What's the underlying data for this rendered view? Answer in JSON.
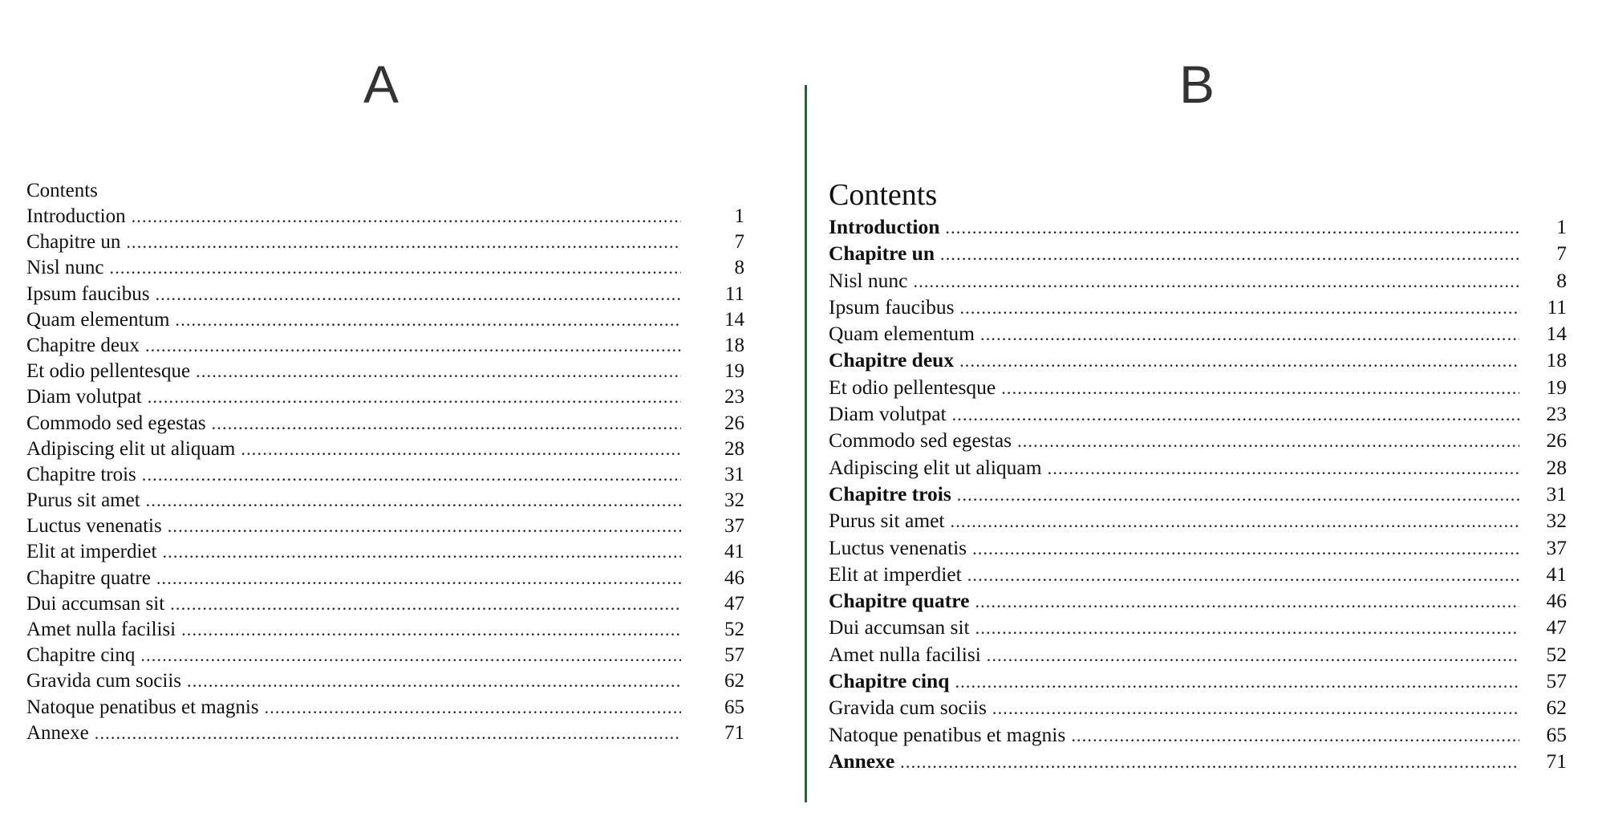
{
  "panel_a": {
    "label": "A",
    "heading": "Contents",
    "entries": [
      {
        "title": "Introduction",
        "page": "1"
      },
      {
        "title": "Chapitre un",
        "page": "7"
      },
      {
        "title": "Nisl nunc",
        "page": "8"
      },
      {
        "title": "Ipsum faucibus",
        "page": "11"
      },
      {
        "title": "Quam elementum",
        "page": "14"
      },
      {
        "title": "Chapitre deux",
        "page": "18"
      },
      {
        "title": "Et odio pellentesque",
        "page": "19"
      },
      {
        "title": "Diam volutpat",
        "page": "23"
      },
      {
        "title": "Commodo sed egestas",
        "page": "26"
      },
      {
        "title": "Adipiscing elit ut aliquam",
        "page": "28"
      },
      {
        "title": "Chapitre trois",
        "page": "31"
      },
      {
        "title": "Purus sit amet",
        "page": "32"
      },
      {
        "title": "Luctus venenatis",
        "page": "37"
      },
      {
        "title": "Elit at imperdiet",
        "page": "41"
      },
      {
        "title": "Chapitre quatre",
        "page": "46"
      },
      {
        "title": "Dui accumsan sit",
        "page": "47"
      },
      {
        "title": "Amet nulla facilisi",
        "page": "52"
      },
      {
        "title": "Chapitre cinq",
        "page": "57"
      },
      {
        "title": "Gravida cum sociis",
        "page": "62"
      },
      {
        "title": "Natoque penatibus et magnis",
        "page": "65"
      },
      {
        "title": "Annexe",
        "page": "71"
      }
    ]
  },
  "panel_b": {
    "label": "B",
    "heading": "Contents",
    "entries": [
      {
        "title": "Introduction",
        "page": "1",
        "bold": true
      },
      {
        "title": "Chapitre un",
        "page": "7",
        "bold": true
      },
      {
        "title": "Nisl nunc",
        "page": "8",
        "bold": false
      },
      {
        "title": "Ipsum faucibus",
        "page": "11",
        "bold": false
      },
      {
        "title": "Quam elementum",
        "page": "14",
        "bold": false
      },
      {
        "title": "Chapitre deux",
        "page": "18",
        "bold": true
      },
      {
        "title": "Et odio pellentesque",
        "page": "19",
        "bold": false
      },
      {
        "title": "Diam volutpat",
        "page": "23",
        "bold": false
      },
      {
        "title": "Commodo sed egestas",
        "page": "26",
        "bold": false
      },
      {
        "title": "Adipiscing elit ut aliquam",
        "page": "28",
        "bold": false
      },
      {
        "title": "Chapitre trois",
        "page": "31",
        "bold": true
      },
      {
        "title": "Purus sit amet",
        "page": "32",
        "bold": false
      },
      {
        "title": "Luctus venenatis",
        "page": "37",
        "bold": false
      },
      {
        "title": "Elit at imperdiet",
        "page": "41",
        "bold": false
      },
      {
        "title": "Chapitre quatre",
        "page": "46",
        "bold": true
      },
      {
        "title": "Dui accumsan sit",
        "page": "47",
        "bold": false
      },
      {
        "title": "Amet nulla facilisi",
        "page": "52",
        "bold": false
      },
      {
        "title": "Chapitre cinq",
        "page": "57",
        "bold": true
      },
      {
        "title": "Gravida cum sociis",
        "page": "62",
        "bold": false
      },
      {
        "title": "Natoque penatibus et magnis",
        "page": "65",
        "bold": false
      },
      {
        "title": "Annexe",
        "page": "71",
        "bold": true
      }
    ]
  },
  "colors": {
    "divider": "#1f6b38",
    "label": "#333333",
    "text": "#111111"
  }
}
